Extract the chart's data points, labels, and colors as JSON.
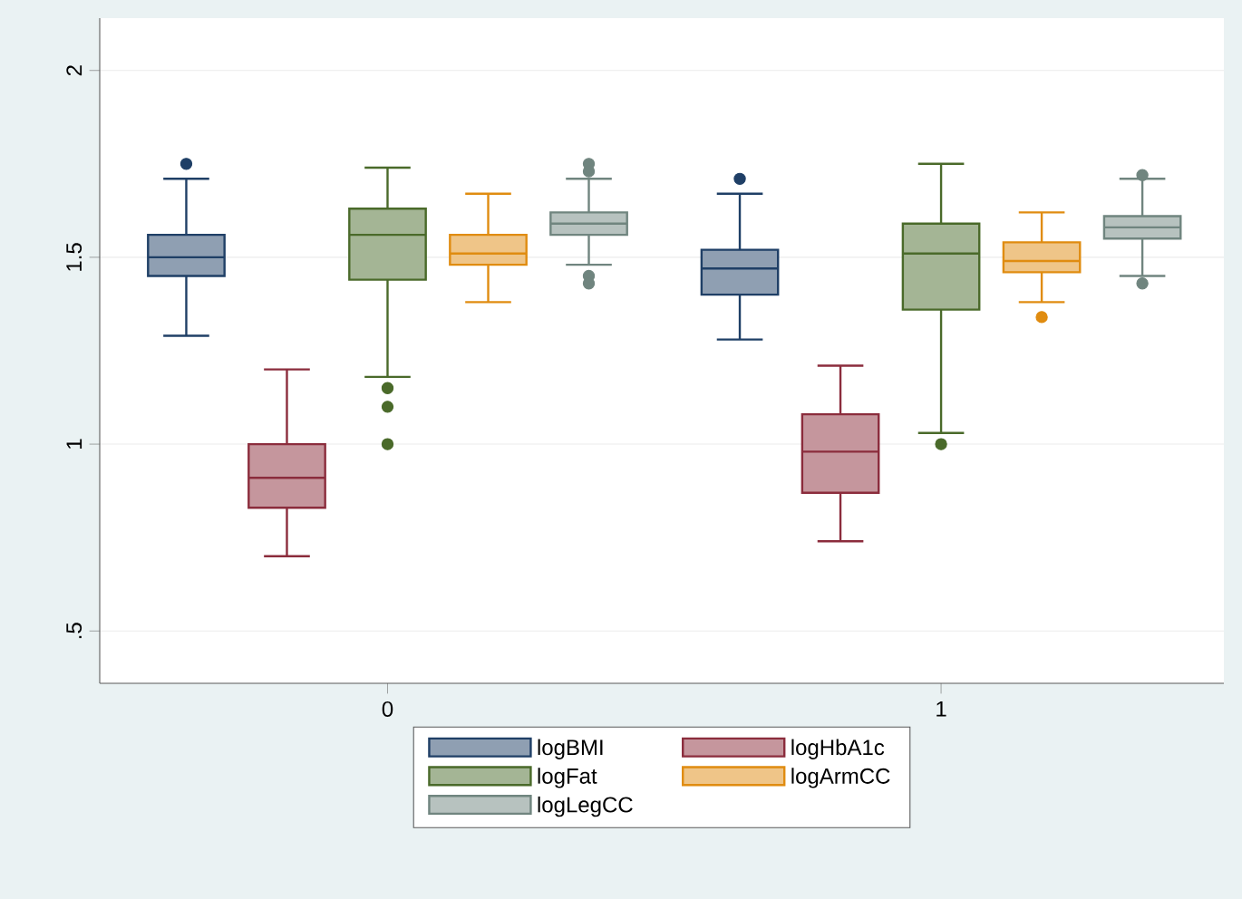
{
  "chart_data": {
    "type": "box",
    "categories": [
      "0",
      "1"
    ],
    "series": [
      {
        "name": "logBMI",
        "color": "#1f3f66",
        "boxes": [
          {
            "low": 1.29,
            "q1": 1.45,
            "median": 1.5,
            "q3": 1.56,
            "high": 1.71,
            "outliers": [
              1.75
            ]
          },
          {
            "low": 1.28,
            "q1": 1.4,
            "median": 1.47,
            "q3": 1.52,
            "high": 1.67,
            "outliers": [
              1.71
            ]
          }
        ]
      },
      {
        "name": "logHbA1c",
        "color": "#8b2c3c",
        "boxes": [
          {
            "low": 0.7,
            "q1": 0.83,
            "median": 0.91,
            "q3": 1.0,
            "high": 1.2
          },
          {
            "low": 0.74,
            "q1": 0.87,
            "median": 0.98,
            "q3": 1.08,
            "high": 1.21
          }
        ]
      },
      {
        "name": "logFat",
        "color": "#4a6a2a",
        "boxes": [
          {
            "low": 1.18,
            "q1": 1.44,
            "median": 1.56,
            "q3": 1.63,
            "high": 1.74,
            "outliers": [
              1.15,
              1.1,
              1.0
            ]
          },
          {
            "low": 1.03,
            "q1": 1.36,
            "median": 1.51,
            "q3": 1.59,
            "high": 1.75,
            "outliers": [
              1.0
            ]
          }
        ]
      },
      {
        "name": "logArmCC",
        "color": "#e08c10",
        "boxes": [
          {
            "low": 1.38,
            "q1": 1.48,
            "median": 1.51,
            "q3": 1.56,
            "high": 1.67
          },
          {
            "low": 1.38,
            "q1": 1.46,
            "median": 1.49,
            "q3": 1.54,
            "high": 1.62,
            "outliers": [
              1.34
            ]
          }
        ]
      },
      {
        "name": "logLegCC",
        "color": "#70857f",
        "boxes": [
          {
            "low": 1.48,
            "q1": 1.56,
            "median": 1.59,
            "q3": 1.62,
            "high": 1.71,
            "outliers": [
              1.75,
              1.73,
              1.45,
              1.43
            ]
          },
          {
            "low": 1.45,
            "q1": 1.55,
            "median": 1.58,
            "q3": 1.61,
            "high": 1.71,
            "outliers": [
              1.72,
              1.43
            ]
          }
        ]
      }
    ],
    "ylim": [
      0.36,
      2.14
    ],
    "yticks": [
      {
        "value": 0.5,
        "label": ".5"
      },
      1,
      1.5,
      2
    ],
    "grid": "y",
    "legend": "bottom"
  }
}
